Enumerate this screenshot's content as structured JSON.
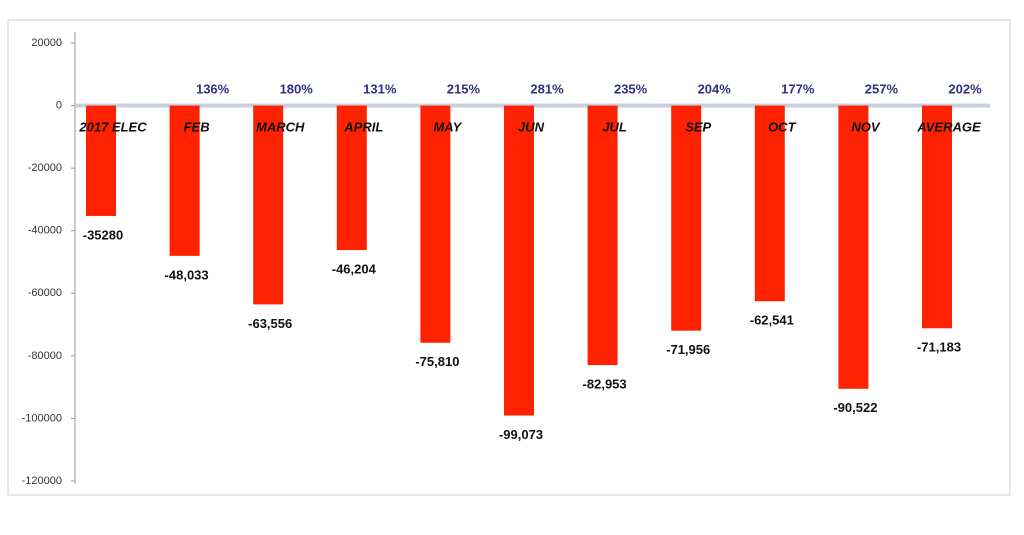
{
  "chart_data": {
    "type": "bar",
    "categories": [
      "2017 ELEC",
      "FEB",
      "MARCH",
      "APRIL",
      "MAY",
      "JUN",
      "JUL",
      "SEP",
      "OCT",
      "NOV",
      "AVERAGE"
    ],
    "values": [
      -35280,
      -48033,
      -63556,
      -46204,
      -75810,
      -99073,
      -82953,
      -71956,
      -62541,
      -90522,
      -71183
    ],
    "value_labels": [
      "-35280",
      "-48,033",
      "-63,556",
      "-46,204",
      "-75,810",
      "-99,073",
      "-82,953",
      "-71,956",
      "-62,541",
      "-90,522",
      "-71,183"
    ],
    "percent_labels": [
      null,
      "136%",
      "180%",
      "131%",
      "215%",
      "281%",
      "235%",
      "204%",
      "177%",
      "257%",
      "202%"
    ],
    "color": "#ff2200",
    "ylim": [
      -120000,
      20000
    ],
    "yticks": [
      -120000,
      -100000,
      -80000,
      -60000,
      -40000,
      -20000,
      0,
      20000
    ],
    "grid": false
  }
}
